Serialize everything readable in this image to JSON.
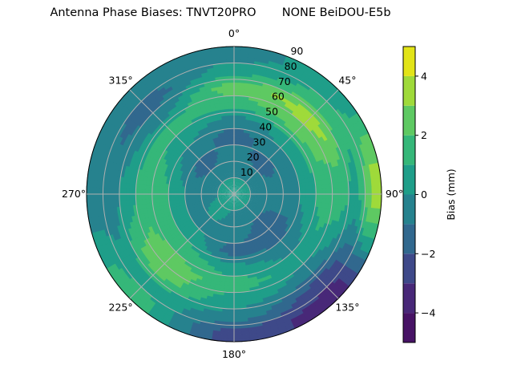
{
  "chart_data": {
    "type": "polar-contour",
    "title": "Antenna Phase Biases: TNVT20PRO       NONE BeiDOU-E5b",
    "angle_ticks": [
      "0°",
      "45°",
      "90°",
      "135°",
      "180°",
      "225°",
      "270°",
      "315°"
    ],
    "angle_tick_values": [
      0,
      45,
      90,
      135,
      180,
      225,
      270,
      315
    ],
    "angle_direction": "clockwise",
    "angle_zero": "top",
    "radial_ticks": [
      "10",
      "20",
      "30",
      "40",
      "50",
      "60",
      "70",
      "80",
      "90"
    ],
    "radial_tick_values": [
      10,
      20,
      30,
      40,
      50,
      60,
      70,
      80,
      90
    ],
    "rlim": [
      0,
      90
    ],
    "grid": true,
    "colormap": "viridis",
    "levels": [
      -5,
      -4,
      -3,
      -2,
      -1,
      0,
      1,
      2,
      3,
      4,
      5
    ],
    "level_colors": [
      "#471365",
      "#482878",
      "#3e4989",
      "#31688e",
      "#26828e",
      "#1f9e89",
      "#35b779",
      "#5ec962",
      "#9fda3a",
      "#e2e418"
    ],
    "colorbar": {
      "label": "Bias (mm)",
      "ticks": [
        "−4",
        "−2",
        "0",
        "2",
        "4"
      ],
      "tick_values": [
        -4,
        -2,
        0,
        2,
        4
      ],
      "range": [
        -5,
        5
      ]
    },
    "grid_azimuth": [
      0,
      45,
      90,
      135,
      180,
      225,
      270,
      315
    ],
    "grid_zenith": [
      5,
      15,
      25,
      35,
      45,
      55,
      65,
      75,
      85
    ],
    "values": [
      [
        0.5,
        -0.5,
        -0.5,
        -1.5,
        -0.5,
        1.5,
        2.5,
        0.5,
        -0.5
      ],
      [
        0.5,
        -0.5,
        -1.5,
        -0.5,
        0.5,
        2.5,
        3.5,
        1.5,
        0.5
      ],
      [
        0.5,
        -0.5,
        -0.5,
        -0.5,
        0.5,
        1.5,
        1.5,
        0.5,
        3.5
      ],
      [
        0.5,
        -0.5,
        -1.5,
        -1.5,
        -0.5,
        0.5,
        -0.5,
        -2.5,
        -3.5
      ],
      [
        0.5,
        -0.5,
        -0.5,
        -1.5,
        0.5,
        1.5,
        0.5,
        -0.5,
        -2.5
      ],
      [
        0.5,
        0.5,
        -0.5,
        0.5,
        1.5,
        2.5,
        2.5,
        0.5,
        1.5
      ],
      [
        0.5,
        -0.5,
        -0.5,
        0.5,
        1.5,
        1.5,
        0.5,
        -0.5,
        -0.5
      ],
      [
        0.5,
        -0.5,
        -1.5,
        -0.5,
        0.5,
        1.5,
        -0.5,
        -1.5,
        -0.5
      ]
    ]
  }
}
